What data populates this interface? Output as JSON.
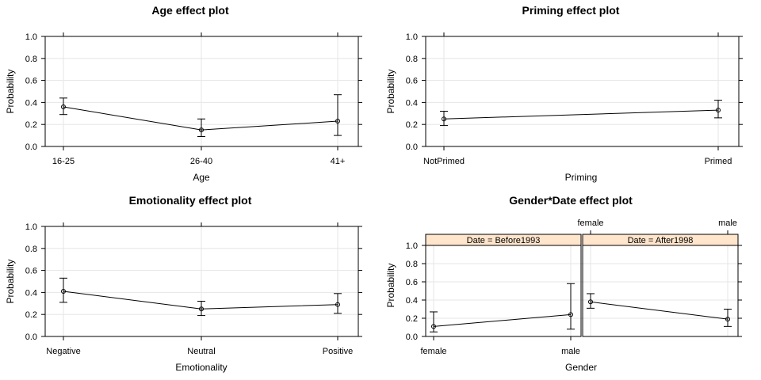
{
  "chart_data": [
    {
      "type": "line",
      "title": "Age effect plot",
      "xlabel": "Age",
      "ylabel": "Probability",
      "ylim": [
        0,
        1
      ],
      "y_ticks": [
        "0.0",
        "0.2",
        "0.4",
        "0.6",
        "0.8",
        "1.0"
      ],
      "categories": [
        "16-25",
        "26-40",
        "41+"
      ],
      "series": [
        {
          "values": [
            0.36,
            0.15,
            0.23
          ],
          "lower": [
            0.29,
            0.09,
            0.1
          ],
          "upper": [
            0.44,
            0.25,
            0.47
          ]
        }
      ],
      "grid": true
    },
    {
      "type": "line",
      "title": "Priming effect plot",
      "xlabel": "Priming",
      "ylabel": "Probability",
      "ylim": [
        0,
        1
      ],
      "y_ticks": [
        "0.0",
        "0.2",
        "0.4",
        "0.6",
        "0.8",
        "1.0"
      ],
      "categories": [
        "NotPrimed",
        "Primed"
      ],
      "series": [
        {
          "values": [
            0.25,
            0.33
          ],
          "lower": [
            0.19,
            0.26
          ],
          "upper": [
            0.32,
            0.42
          ]
        }
      ],
      "grid": true
    },
    {
      "type": "line",
      "title": "Emotionality effect plot",
      "xlabel": "Emotionality",
      "ylabel": "Probability",
      "ylim": [
        0,
        1
      ],
      "y_ticks": [
        "0.0",
        "0.2",
        "0.4",
        "0.6",
        "0.8",
        "1.0"
      ],
      "categories": [
        "Negative",
        "Neutral",
        "Positive"
      ],
      "series": [
        {
          "values": [
            0.41,
            0.25,
            0.29
          ],
          "lower": [
            0.31,
            0.19,
            0.21
          ],
          "upper": [
            0.53,
            0.32,
            0.39
          ]
        }
      ],
      "grid": true
    },
    {
      "type": "line",
      "title": "Gender*Date effect plot",
      "xlabel": "Gender",
      "ylabel": "Probability",
      "ylim": [
        0,
        1
      ],
      "y_ticks": [
        "0.0",
        "0.2",
        "0.4",
        "0.6",
        "0.8",
        "1.0"
      ],
      "categories": [
        "female",
        "male"
      ],
      "grid": true,
      "panels": [
        {
          "strip": "Date = Before1993",
          "values": [
            0.11,
            0.24
          ],
          "lower": [
            0.05,
            0.08
          ],
          "upper": [
            0.27,
            0.58
          ]
        },
        {
          "strip": "Date = After1998",
          "values": [
            0.38,
            0.19
          ],
          "lower": [
            0.31,
            0.11
          ],
          "upper": [
            0.47,
            0.3
          ]
        }
      ],
      "colors": {
        "strip": "#ffe5cc"
      }
    }
  ]
}
